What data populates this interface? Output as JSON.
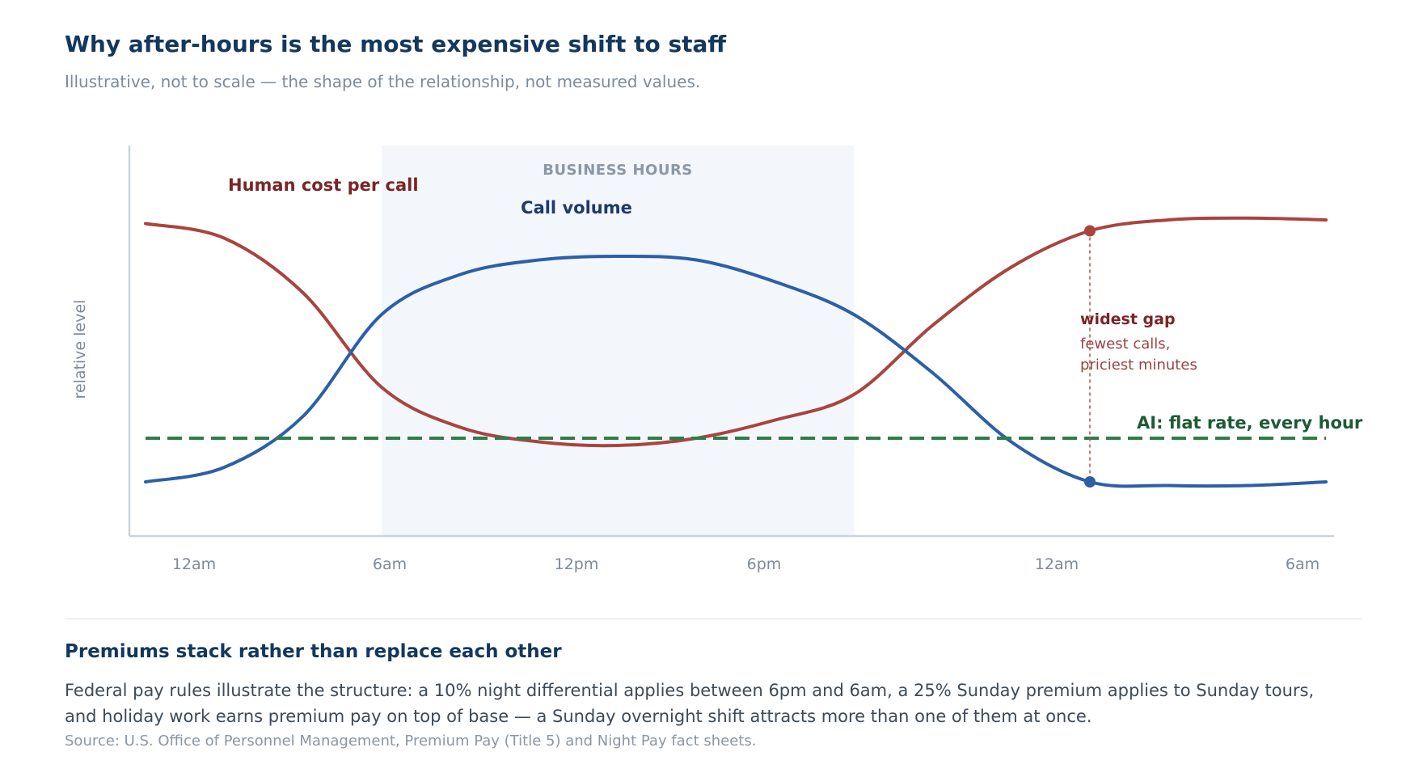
{
  "header": {
    "title": "Why after-hours is the most expensive shift to staff",
    "subtitle": "Illustrative, not to scale — the shape of the relationship, not measured values."
  },
  "chart_data": {
    "type": "line",
    "ylabel": "relative level",
    "x_tick_labels": [
      "12am",
      "6am",
      "12pm",
      "6pm",
      "12am",
      "6am"
    ],
    "xlim_hours": [
      0,
      30
    ],
    "shaded_band": {
      "label": "BUSINESS HOURS",
      "x_start": 6,
      "x_end": 18
    },
    "series": [
      {
        "name": "Human cost per call",
        "color": "#a9443f",
        "label_color": "#7a2525",
        "points": [
          [
            0,
            0.83
          ],
          [
            2,
            0.79
          ],
          [
            4,
            0.64
          ],
          [
            6,
            0.38
          ],
          [
            8,
            0.27
          ],
          [
            10,
            0.23
          ],
          [
            12,
            0.22
          ],
          [
            14,
            0.24
          ],
          [
            16,
            0.29
          ],
          [
            18,
            0.36
          ],
          [
            20,
            0.55
          ],
          [
            22,
            0.71
          ],
          [
            24,
            0.81
          ],
          [
            26,
            0.84
          ],
          [
            28,
            0.845
          ],
          [
            30,
            0.84
          ]
        ]
      },
      {
        "name": "Call volume",
        "color": "#2c5fa8",
        "label_color": "#1c3a6b",
        "points": [
          [
            0,
            0.12
          ],
          [
            2,
            0.16
          ],
          [
            4,
            0.3
          ],
          [
            6,
            0.58
          ],
          [
            8,
            0.69
          ],
          [
            10,
            0.73
          ],
          [
            12,
            0.74
          ],
          [
            14,
            0.73
          ],
          [
            16,
            0.67
          ],
          [
            18,
            0.58
          ],
          [
            20,
            0.42
          ],
          [
            22,
            0.23
          ],
          [
            24,
            0.12
          ],
          [
            26,
            0.11
          ],
          [
            28,
            0.11
          ],
          [
            30,
            0.12
          ]
        ]
      },
      {
        "name": "AI: flat rate, every hour",
        "color": "#2e7d4a",
        "label_color": "#1e5a35",
        "style": "dashed",
        "points": [
          [
            0,
            0.24
          ],
          [
            30,
            0.24
          ]
        ]
      }
    ],
    "annotation": {
      "x": 24,
      "title": "widest gap",
      "lines": [
        "fewest calls,",
        "priciest minutes"
      ]
    },
    "grid": false
  },
  "bottom": {
    "heading": "Premiums stack rather than replace each other",
    "body": "Federal pay rules illustrate the structure: a 10% night differential applies between 6pm and 6am, a 25% Sunday premium applies to Sunday tours, and holiday work earns premium pay on top of base — a Sunday overnight shift attracts more than one of them at once.",
    "source": "Source: U.S. Office of Personnel Management, Premium Pay (Title 5) and Night Pay fact sheets."
  }
}
